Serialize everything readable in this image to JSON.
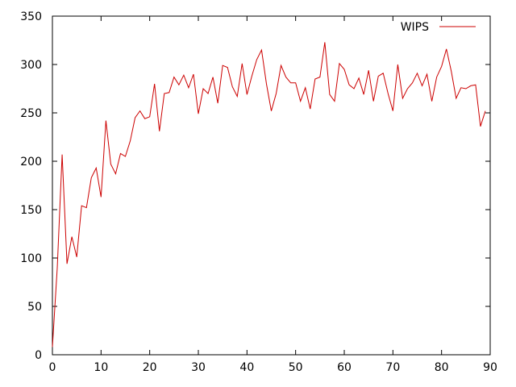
{
  "chart_data": {
    "type": "line",
    "title": "",
    "xlabel": "",
    "ylabel": "",
    "xlim": [
      0,
      90
    ],
    "ylim": [
      0,
      350
    ],
    "xticks": [
      0,
      10,
      20,
      30,
      40,
      50,
      60,
      70,
      80,
      90
    ],
    "yticks": [
      0,
      50,
      100,
      150,
      200,
      250,
      300,
      350
    ],
    "grid": false,
    "legend_position": "top-right",
    "series": [
      {
        "name": "WIPS",
        "color": "#cc0000",
        "x": [
          0,
          1,
          2,
          3,
          4,
          5,
          6,
          7,
          8,
          9,
          10,
          11,
          12,
          13,
          14,
          15,
          16,
          17,
          18,
          19,
          20,
          21,
          22,
          23,
          24,
          25,
          26,
          27,
          28,
          29,
          30,
          31,
          32,
          33,
          34,
          35,
          36,
          37,
          38,
          39,
          40,
          41,
          42,
          43,
          44,
          45,
          46,
          47,
          48,
          49,
          50,
          51,
          52,
          53,
          54,
          55,
          56,
          57,
          58,
          59,
          60,
          61,
          62,
          63,
          64,
          65,
          66,
          67,
          68,
          69,
          70,
          71,
          72,
          73,
          74,
          75,
          76,
          77,
          78,
          79,
          80,
          81,
          82,
          83,
          84,
          85,
          86,
          87,
          88,
          89
        ],
        "y": [
          8,
          90,
          207,
          94,
          122,
          101,
          154,
          152,
          183,
          193,
          163,
          242,
          197,
          187,
          208,
          205,
          221,
          245,
          252,
          244,
          246,
          280,
          231,
          270,
          271,
          287,
          279,
          289,
          276,
          290,
          249,
          275,
          270,
          287,
          260,
          299,
          297,
          277,
          267,
          301,
          269,
          288,
          305,
          315,
          280,
          252,
          270,
          299,
          287,
          281,
          281,
          262,
          276,
          254,
          285,
          287,
          323,
          269,
          262,
          301,
          295,
          279,
          275,
          286,
          269,
          294,
          262,
          288,
          291,
          270,
          252,
          300,
          265,
          275,
          281,
          291,
          278,
          290,
          262,
          287,
          298,
          316,
          293,
          265,
          276,
          275,
          278,
          279,
          236,
          252
        ]
      }
    ]
  }
}
